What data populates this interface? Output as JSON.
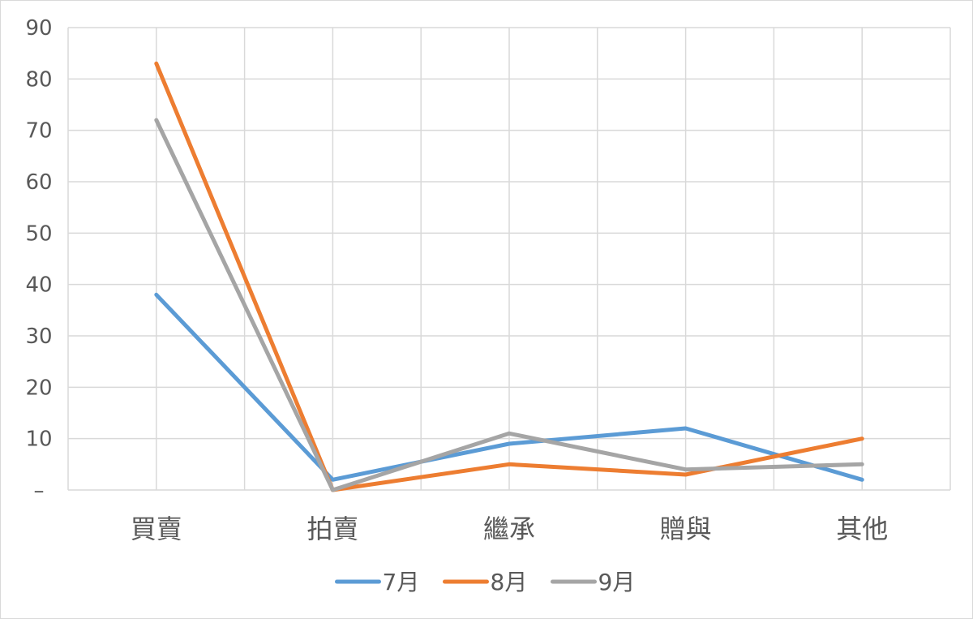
{
  "chart_data": {
    "type": "line",
    "categories": [
      "買賣",
      "拍賣",
      "繼承",
      "贈與",
      "其他"
    ],
    "series": [
      {
        "name": "7月",
        "values": [
          38,
          2,
          9,
          12,
          2
        ],
        "color": "#5B9BD5"
      },
      {
        "name": "8月",
        "values": [
          83,
          0,
          5,
          3,
          10
        ],
        "color": "#ED7D31"
      },
      {
        "name": "9月",
        "values": [
          72,
          0,
          11,
          4,
          5
        ],
        "color": "#A5A5A5"
      }
    ],
    "y_ticks": [
      "–",
      "10",
      "20",
      "30",
      "40",
      "50",
      "60",
      "70",
      "80",
      "90"
    ],
    "ylim": [
      0,
      90
    ],
    "grid": true,
    "legend": "bottom"
  }
}
